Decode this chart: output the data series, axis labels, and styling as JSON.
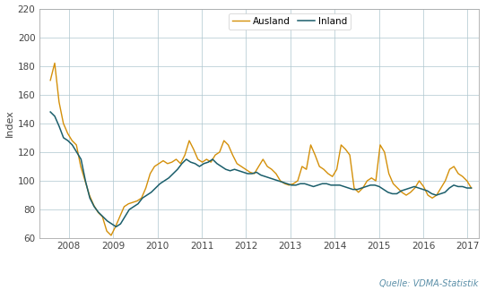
{
  "title": "",
  "ylabel": "Index",
  "source_text": "Quelle: VDMA-Statistik",
  "legend_labels": [
    "Ausland",
    "Inland"
  ],
  "line_colors": [
    "#D4900A",
    "#1B5E6B"
  ],
  "ylim": [
    60,
    220
  ],
  "yticks": [
    60,
    80,
    100,
    120,
    140,
    160,
    180,
    200,
    220
  ],
  "xtick_years": [
    2008,
    2009,
    2010,
    2011,
    2012,
    2013,
    2014,
    2015,
    2016,
    2017
  ],
  "xlim": [
    2007.33,
    2017.25
  ],
  "background_color": "#ffffff",
  "grid_color": "#aec6cf",
  "spine_color": "#aaaaaa",
  "source_color": "#5B8FA8",
  "ausland": [
    170,
    182,
    155,
    140,
    133,
    128,
    125,
    110,
    100,
    90,
    83,
    78,
    75,
    65,
    62,
    68,
    75,
    82,
    84,
    85,
    86,
    88,
    95,
    105,
    110,
    112,
    114,
    112,
    113,
    115,
    112,
    118,
    128,
    122,
    115,
    113,
    115,
    113,
    118,
    120,
    128,
    125,
    118,
    112,
    110,
    108,
    106,
    105,
    110,
    115,
    110,
    108,
    105,
    100,
    98,
    97,
    98,
    100,
    110,
    108,
    125,
    118,
    110,
    108,
    105,
    103,
    108,
    125,
    122,
    118,
    95,
    92,
    95,
    100,
    102,
    100,
    125,
    120,
    105,
    98,
    95,
    92,
    90,
    92,
    95,
    100,
    96,
    90,
    88,
    90,
    95,
    100,
    108,
    110,
    105,
    103,
    100,
    95
  ],
  "inland": [
    148,
    145,
    138,
    130,
    128,
    125,
    120,
    115,
    100,
    88,
    82,
    78,
    75,
    72,
    70,
    68,
    70,
    75,
    80,
    82,
    84,
    88,
    90,
    92,
    95,
    98,
    100,
    102,
    105,
    108,
    112,
    115,
    113,
    112,
    110,
    112,
    113,
    115,
    112,
    110,
    108,
    107,
    108,
    107,
    106,
    105,
    105,
    106,
    104,
    103,
    102,
    101,
    100,
    99,
    98,
    97,
    97,
    98,
    98,
    97,
    96,
    97,
    98,
    98,
    97,
    97,
    97,
    96,
    95,
    94,
    94,
    95,
    96,
    97,
    97,
    96,
    94,
    92,
    91,
    91,
    93,
    94,
    95,
    96,
    95,
    94,
    93,
    91,
    90,
    91,
    92,
    95,
    97,
    96,
    96,
    95,
    95
  ]
}
